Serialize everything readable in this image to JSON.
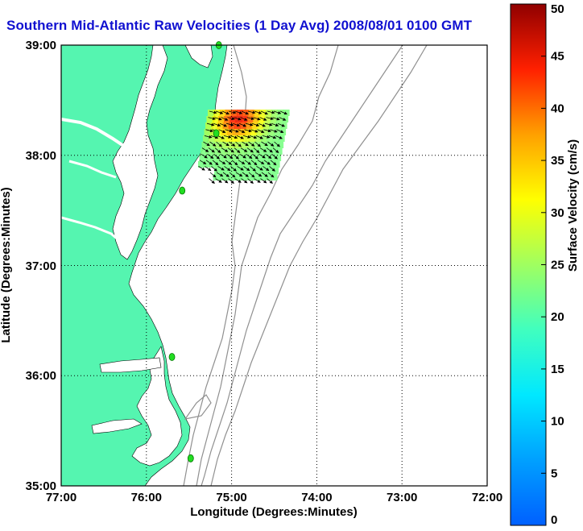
{
  "title": "Southern Mid-Atlantic Raw Velocities (1 Day Avg) 2008/08/01 0100 GMT",
  "map": {
    "xlabel": "Longitude (Degrees:Minutes)",
    "ylabel": "Latitude (Degrees:Minutes)",
    "x_ticks": [
      "77:00",
      "76:00",
      "75:00",
      "74:00",
      "73:00",
      "72:00"
    ],
    "y_ticks": [
      "39:00",
      "38:00",
      "37:00",
      "36:00",
      "35:00"
    ],
    "lon_range": [
      -77,
      -72
    ],
    "lat_range": [
      35,
      39
    ],
    "grid": "dotted",
    "colors": {
      "land": "#55f5b0",
      "water": "#ffffff",
      "bathymetry": "#909090",
      "station": "#22dd22"
    },
    "stations": [
      {
        "lon": -75.15,
        "lat": 39.0
      },
      {
        "lon": -75.18,
        "lat": 38.2
      },
      {
        "lon": -75.58,
        "lat": 37.68
      },
      {
        "lon": -75.7,
        "lat": 36.17
      },
      {
        "lon": -75.48,
        "lat": 35.25
      }
    ]
  },
  "colorbar": {
    "label": "Surface Velocity (cm/s)",
    "ticks": [
      "0",
      "5",
      "10",
      "15",
      "20",
      "25",
      "30",
      "35",
      "40",
      "45",
      "50"
    ],
    "range": [
      0,
      50
    ],
    "colormap": "jet"
  }
}
